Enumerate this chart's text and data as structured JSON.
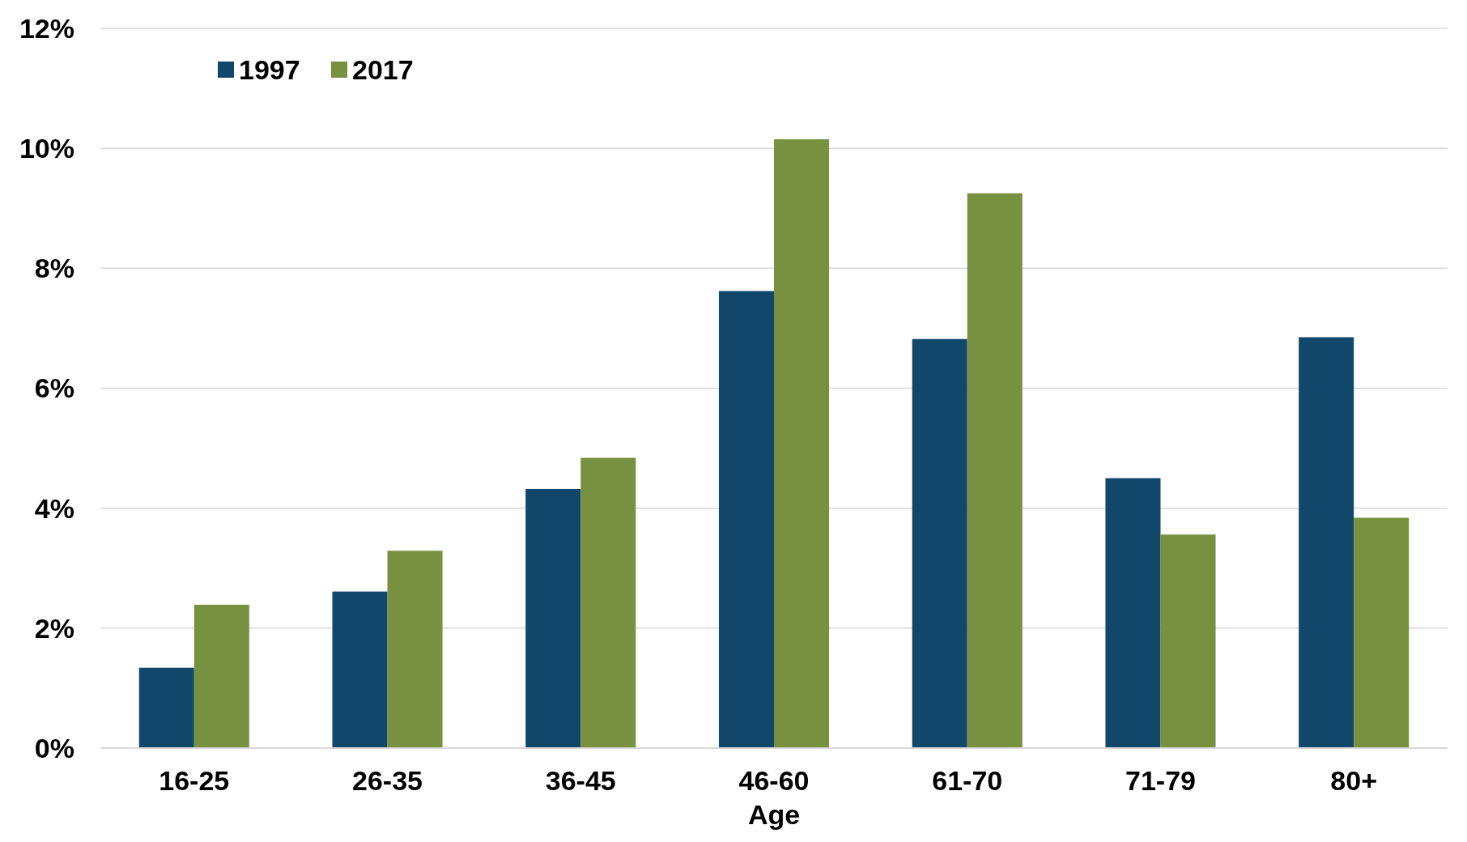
{
  "chart_data": {
    "type": "bar",
    "xlabel": "Age",
    "categories": [
      "16-25",
      "26-35",
      "36-45",
      "46-60",
      "61-70",
      "71-79",
      "80+"
    ],
    "series": [
      {
        "name": "1997",
        "color": "#11476a",
        "values": [
          1.34,
          2.61,
          4.32,
          7.62,
          6.82,
          4.5,
          6.85
        ]
      },
      {
        "name": "2017",
        "color": "#789140",
        "values": [
          2.39,
          3.29,
          4.84,
          10.15,
          9.25,
          3.56,
          3.84
        ]
      }
    ],
    "ylim": [
      0,
      12
    ],
    "yticks": [
      {
        "value": 0,
        "label": "0%"
      },
      {
        "value": 2,
        "label": "2%"
      },
      {
        "value": 4,
        "label": "4%"
      },
      {
        "value": 6,
        "label": "6%"
      },
      {
        "value": 8,
        "label": "8%"
      },
      {
        "value": 10,
        "label": "10%"
      },
      {
        "value": 12,
        "label": "12%"
      }
    ],
    "grid": "y",
    "legend": "top left"
  }
}
